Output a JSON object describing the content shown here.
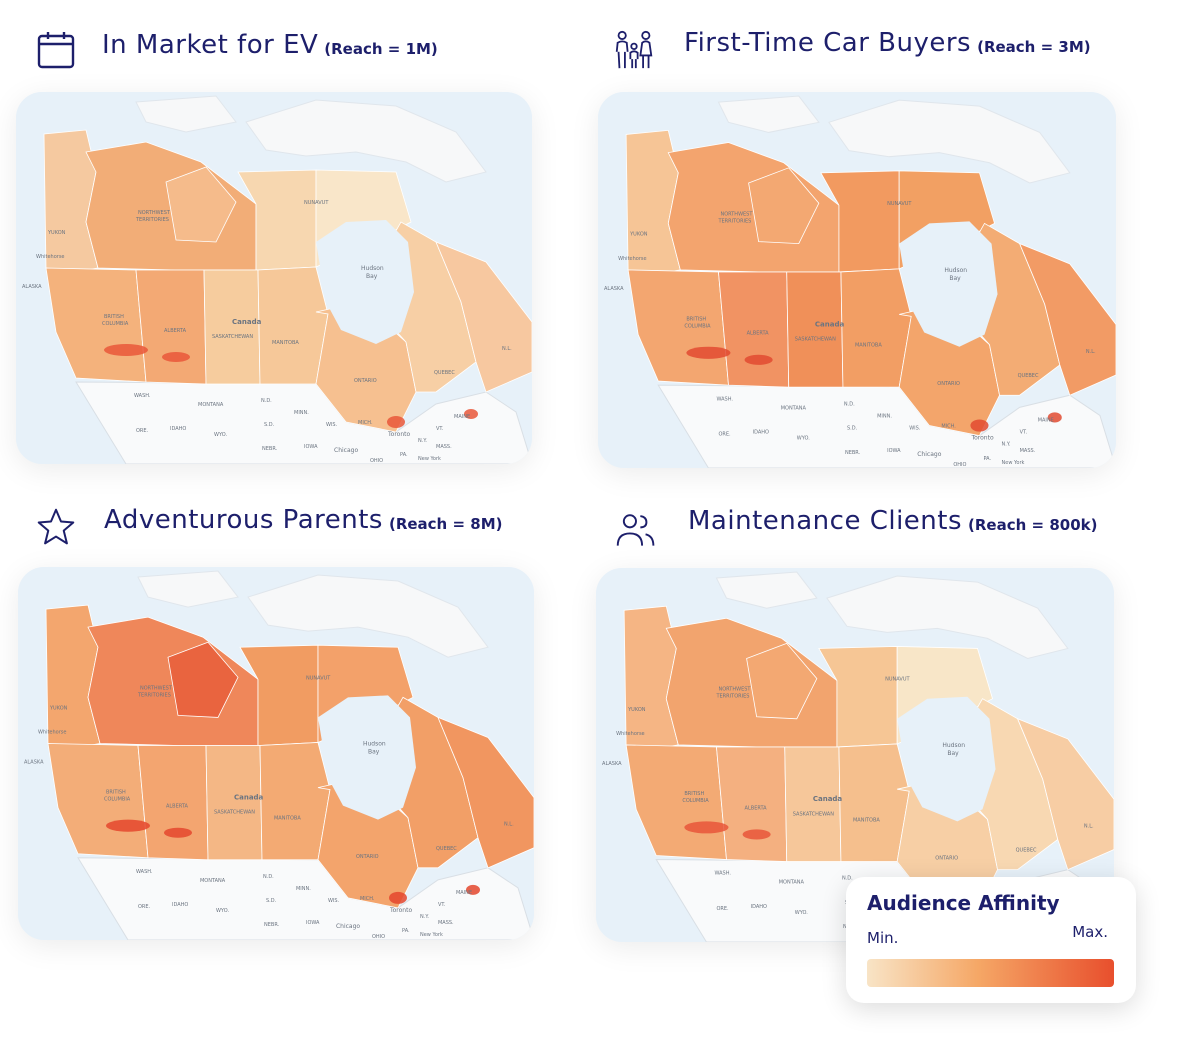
{
  "panels": [
    {
      "id": "ev",
      "title": "In Market for EV",
      "reach": "(Reach = 1M)",
      "icon": "calendar-icon",
      "fills": {
        "yukon": "#f5c9a0",
        "nwt_west": "#f2ad77",
        "nwt_east": "#f5bb8b",
        "nunavut_west": "#f7d7b0",
        "nunavut_east": "#f9e6c9",
        "bc": "#f4b27c",
        "alberta": "#f3a974",
        "saskatchewan": "#f6cc9e",
        "manitoba": "#f6c899",
        "ontario": "#f6c090",
        "quebec": "#f7cfa5",
        "atlantic": "#f7c8a0",
        "hotspot": "#e9573a"
      }
    },
    {
      "id": "ftb",
      "title": "First-Time Car Buyers",
      "reach": "(Reach = 3M)",
      "icon": "family-icon",
      "fills": {
        "yukon": "#f6c596",
        "nwt_west": "#f3a46e",
        "nwt_east": "#f3a872",
        "nunavut_west": "#f29a60",
        "nunavut_east": "#f2a063",
        "bc": "#f3a670",
        "alberta": "#f19363",
        "saskatchewan": "#f09059",
        "manitoba": "#f29e64",
        "ontario": "#f3a56b",
        "quebec": "#f3ac74",
        "atlantic": "#f29b65",
        "hotspot": "#e24a30"
      }
    },
    {
      "id": "ap",
      "title": "Adventurous Parents",
      "reach": "(Reach = 8M)",
      "icon": "star-icon",
      "fills": {
        "yukon": "#f3a66e",
        "nwt_west": "#ef875a",
        "nwt_east": "#e9643f",
        "nunavut_west": "#f19c62",
        "nunavut_east": "#f3a16a",
        "bc": "#f3ad78",
        "alberta": "#f3a570",
        "saskatchewan": "#f4b785",
        "manitoba": "#f3aa73",
        "ontario": "#f3a46c",
        "quebec": "#f29f67",
        "atlantic": "#f19660",
        "hotspot": "#e4472d"
      }
    },
    {
      "id": "mc",
      "title": "Maintenance Clients",
      "reach": "(Reach = 800k)",
      "icon": "users-icon",
      "fills": {
        "yukon": "#f5b584",
        "nwt_west": "#f2a46e",
        "nwt_east": "#f3a872",
        "nunavut_west": "#f6c695",
        "nunavut_east": "#f8e6c8",
        "bc": "#f3aa74",
        "alberta": "#f4b080",
        "saskatchewan": "#f6c79a",
        "manitoba": "#f5bf8d",
        "ontario": "#f7cfa5",
        "quebec": "#f8d8b2",
        "atlantic": "#f7cda4",
        "hotspot": "#e8563a"
      }
    }
  ],
  "map_labels": {
    "canada": "Canada",
    "hudson_bay_1": "Hudson",
    "hudson_bay_2": "Bay",
    "nunavut": "NUNAVUT",
    "yukon": "YUKON",
    "nwt_1": "NORTHWEST",
    "nwt_2": "TERRITORIES",
    "bc_1": "BRITISH",
    "bc_2": "COLUMBIA",
    "alberta": "ALBERTA",
    "sask": "SASKATCHEWAN",
    "manitoba": "MANITOBA",
    "ontario": "ONTARIO",
    "quebec": "QUEBEC",
    "toronto": "Toronto",
    "chicago": "Chicago",
    "new_york": "New York",
    "wash": "WASH.",
    "montana": "MONTANA",
    "nd": "N.D.",
    "sd": "S.D.",
    "minn": "MINN.",
    "wis": "WIS.",
    "mich": "MICH.",
    "ore": "ORE.",
    "idaho": "IDAHO",
    "wyo": "WYO.",
    "nebr": "NEBR.",
    "iowa": "IOWA",
    "ohio": "OHIO",
    "pa": "PA.",
    "ny": "N.Y.",
    "vt": "VT.",
    "maine": "MAINE",
    "mass": "MASS.",
    "nl": "N.L.",
    "alaska": "ALASKA",
    "whitehorse": "Whitehorse"
  },
  "legend": {
    "title": "Audience Affinity",
    "min": "Min.",
    "max": "Max.",
    "gradient": [
      "#f8e4c6",
      "#f5a766",
      "#e84f2d"
    ]
  }
}
